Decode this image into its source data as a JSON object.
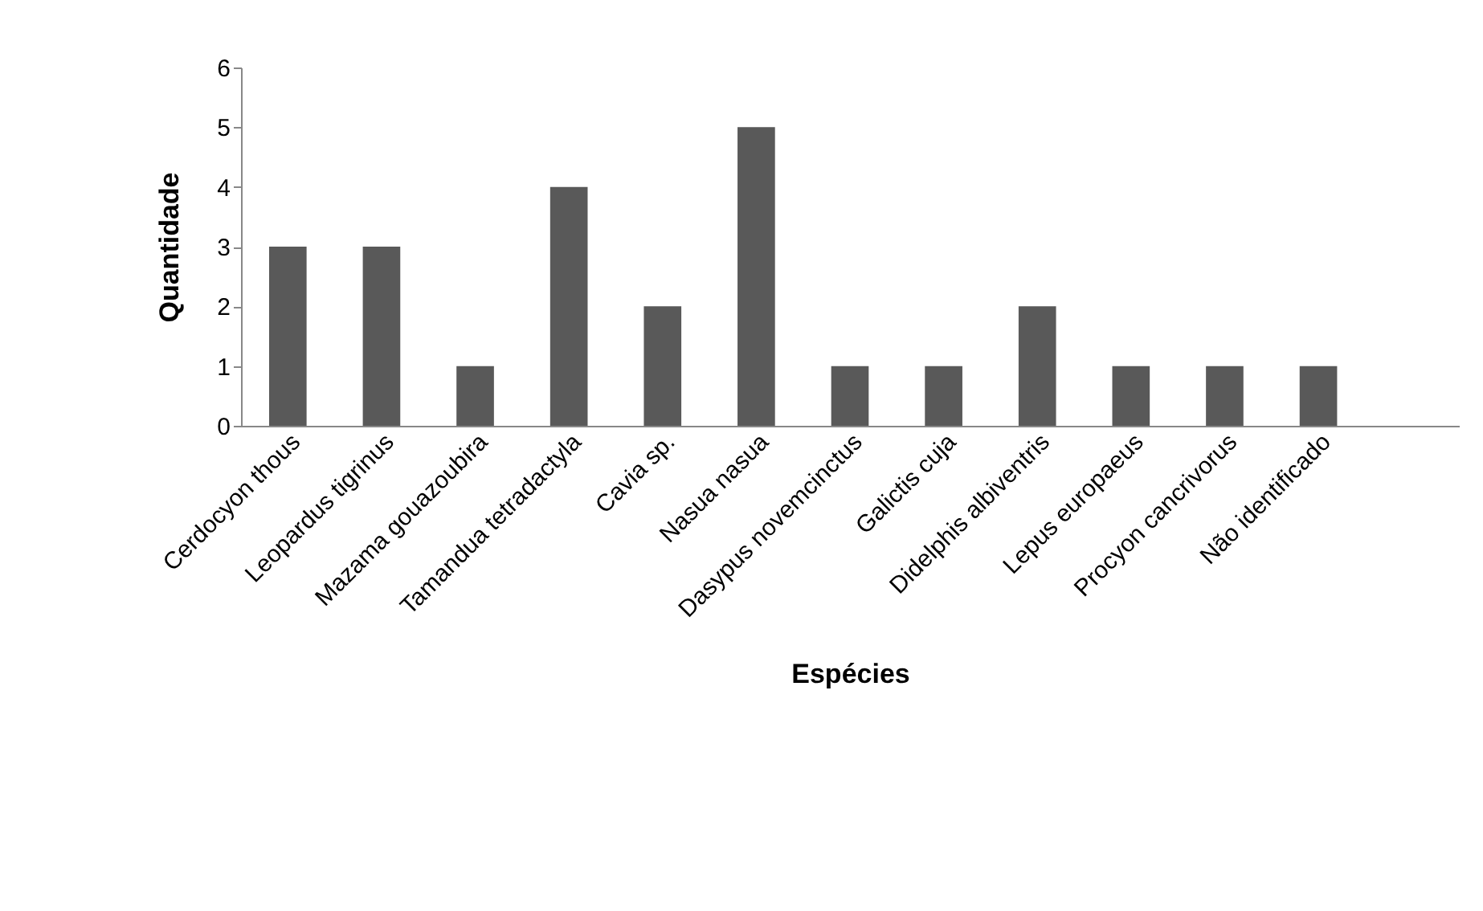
{
  "chart_data": {
    "type": "bar",
    "xlabel": "Espécies",
    "ylabel": "Quantidade",
    "categories": [
      "Cerdocyon thous",
      "Leopardus tigrinus",
      "Mazama gouazoubira",
      "Tamandua tetradactyla",
      "Cavia sp.",
      "Nasua nasua",
      "Dasypus novemcinctus",
      "Galictis cuja",
      "Didelphis albiventris",
      "Lepus europaeus",
      "Procyon cancrivorus",
      "Não identificado",
      null
    ],
    "values": [
      3,
      3,
      1,
      4,
      2,
      5,
      1,
      1,
      2,
      1,
      1,
      1,
      null
    ],
    "color": "#595959",
    "ylim": [
      0,
      6
    ],
    "yticks": [
      0,
      1,
      2,
      3,
      4,
      5,
      6
    ],
    "grid": false
  }
}
